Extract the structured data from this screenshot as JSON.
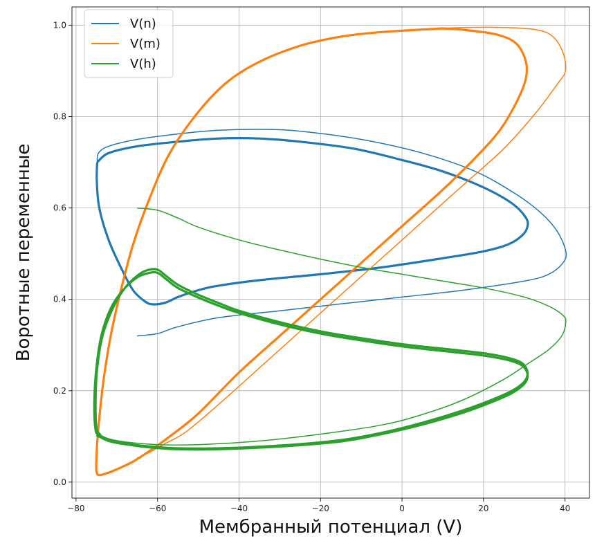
{
  "chart_data": {
    "type": "line",
    "title": "",
    "xlabel": "Мембранный потенциал (V)",
    "ylabel": "Воротные переменные",
    "xlim": [
      -81,
      46
    ],
    "ylim": [
      -0.035,
      1.04
    ],
    "xticks": [
      -80,
      -60,
      -40,
      -20,
      0,
      20,
      40
    ],
    "yticks": [
      0.0,
      0.2,
      0.4,
      0.6,
      0.8,
      1.0
    ],
    "xtick_labels": [
      "−80",
      "−60",
      "−40",
      "−20",
      "0",
      "20",
      "40"
    ],
    "ytick_labels": [
      "0.0",
      "0.2",
      "0.4",
      "0.6",
      "0.8",
      "1.0"
    ],
    "grid": true,
    "legend_position": "top-left",
    "series": [
      {
        "name": "V(n)",
        "color": "#1f77b4",
        "transient": [
          [
            -65,
            0.32
          ],
          [
            -60,
            0.325
          ],
          [
            -55,
            0.34
          ],
          [
            -45,
            0.36
          ],
          [
            -30,
            0.375
          ],
          [
            -15,
            0.39
          ],
          [
            0,
            0.405
          ],
          [
            15,
            0.42
          ],
          [
            30,
            0.44
          ],
          [
            36,
            0.455
          ],
          [
            39.5,
            0.48
          ],
          [
            40.2,
            0.505
          ],
          [
            38,
            0.55
          ],
          [
            34,
            0.59
          ],
          [
            28,
            0.63
          ],
          [
            18,
            0.68
          ],
          [
            5,
            0.72
          ],
          [
            -10,
            0.75
          ],
          [
            -25,
            0.768
          ],
          [
            -35,
            0.772
          ],
          [
            -45,
            0.77
          ],
          [
            -55,
            0.762
          ],
          [
            -65,
            0.75
          ],
          [
            -72,
            0.735
          ],
          [
            -74.5,
            0.72
          ],
          [
            -74.8,
            0.7
          ]
        ],
        "cycle": [
          [
            -74.8,
            0.7
          ],
          [
            -74.9,
            0.66
          ],
          [
            -74.3,
            0.6
          ],
          [
            -72,
            0.53
          ],
          [
            -69,
            0.47
          ],
          [
            -66,
            0.42
          ],
          [
            -63,
            0.395
          ],
          [
            -61,
            0.389
          ],
          [
            -58,
            0.393
          ],
          [
            -55,
            0.405
          ],
          [
            -50,
            0.42
          ],
          [
            -45,
            0.43
          ],
          [
            -35,
            0.442
          ],
          [
            -20,
            0.455
          ],
          [
            -5,
            0.47
          ],
          [
            10,
            0.49
          ],
          [
            20,
            0.505
          ],
          [
            26,
            0.52
          ],
          [
            29.5,
            0.54
          ],
          [
            30.8,
            0.56
          ],
          [
            30.3,
            0.58
          ],
          [
            27,
            0.61
          ],
          [
            20,
            0.645
          ],
          [
            10,
            0.68
          ],
          [
            0,
            0.705
          ],
          [
            -12,
            0.73
          ],
          [
            -25,
            0.745
          ],
          [
            -35,
            0.752
          ],
          [
            -45,
            0.752
          ],
          [
            -55,
            0.745
          ],
          [
            -65,
            0.735
          ],
          [
            -72,
            0.72
          ],
          [
            -74.8,
            0.7
          ]
        ]
      },
      {
        "name": "V(m)",
        "color": "#ff7f0e",
        "transient": [
          [
            -65,
            0.053
          ],
          [
            -62,
            0.065
          ],
          [
            -58,
            0.085
          ],
          [
            -53,
            0.11
          ],
          [
            -45,
            0.17
          ],
          [
            -35,
            0.25
          ],
          [
            -25,
            0.33
          ],
          [
            -15,
            0.41
          ],
          [
            -5,
            0.49
          ],
          [
            5,
            0.57
          ],
          [
            15,
            0.65
          ],
          [
            25,
            0.73
          ],
          [
            33,
            0.81
          ],
          [
            38,
            0.87
          ],
          [
            40.1,
            0.9
          ],
          [
            39.5,
            0.94
          ],
          [
            37,
            0.975
          ],
          [
            33,
            0.99
          ],
          [
            25,
            0.995
          ],
          [
            15,
            0.995
          ],
          [
            10,
            0.993
          ]
        ],
        "cycle": [
          [
            10,
            0.993
          ],
          [
            -5,
            0.985
          ],
          [
            -15,
            0.975
          ],
          [
            -25,
            0.955
          ],
          [
            -35,
            0.92
          ],
          [
            -43,
            0.875
          ],
          [
            -50,
            0.81
          ],
          [
            -57,
            0.72
          ],
          [
            -62,
            0.62
          ],
          [
            -66,
            0.52
          ],
          [
            -69,
            0.42
          ],
          [
            -71.5,
            0.32
          ],
          [
            -73.3,
            0.22
          ],
          [
            -74.5,
            0.12
          ],
          [
            -75,
            0.05
          ],
          [
            -74.8,
            0.018
          ],
          [
            -73,
            0.018
          ],
          [
            -70,
            0.028
          ],
          [
            -66,
            0.045
          ],
          [
            -62,
            0.068
          ],
          [
            -57,
            0.1
          ],
          [
            -50,
            0.15
          ],
          [
            -40,
            0.24
          ],
          [
            -30,
            0.32
          ],
          [
            -20,
            0.4
          ],
          [
            -10,
            0.48
          ],
          [
            0,
            0.56
          ],
          [
            10,
            0.64
          ],
          [
            18,
            0.71
          ],
          [
            24,
            0.77
          ],
          [
            28,
            0.83
          ],
          [
            30.3,
            0.88
          ],
          [
            30.4,
            0.92
          ],
          [
            28,
            0.96
          ],
          [
            23,
            0.98
          ],
          [
            15,
            0.99
          ],
          [
            10,
            0.993
          ]
        ]
      },
      {
        "name": "V(h)",
        "color": "#2ca02c",
        "transient": [
          [
            -65,
            0.6
          ],
          [
            -60,
            0.595
          ],
          [
            -55,
            0.578
          ],
          [
            -50,
            0.558
          ],
          [
            -40,
            0.53
          ],
          [
            -30,
            0.508
          ],
          [
            -20,
            0.488
          ],
          [
            -10,
            0.47
          ],
          [
            0,
            0.455
          ],
          [
            10,
            0.44
          ],
          [
            20,
            0.425
          ],
          [
            30,
            0.405
          ],
          [
            36,
            0.385
          ],
          [
            39.5,
            0.365
          ],
          [
            40.2,
            0.35
          ],
          [
            39.2,
            0.32
          ],
          [
            36,
            0.29
          ],
          [
            31,
            0.26
          ],
          [
            25,
            0.225
          ],
          [
            15,
            0.18
          ],
          [
            5,
            0.148
          ],
          [
            -5,
            0.125
          ],
          [
            -20,
            0.105
          ],
          [
            -35,
            0.09
          ],
          [
            -50,
            0.082
          ],
          [
            -60,
            0.082
          ],
          [
            -68,
            0.088
          ],
          [
            -72,
            0.095
          ],
          [
            -74,
            0.103
          ]
        ],
        "cycle": [
          [
            -74,
            0.103
          ],
          [
            -75,
            0.12
          ],
          [
            -75.2,
            0.18
          ],
          [
            -74.8,
            0.25
          ],
          [
            -73.5,
            0.32
          ],
          [
            -71,
            0.38
          ],
          [
            -68,
            0.425
          ],
          [
            -64.5,
            0.455
          ],
          [
            -62,
            0.465
          ],
          [
            -60,
            0.465
          ],
          [
            -58,
            0.452
          ],
          [
            -55,
            0.432
          ],
          [
            -50,
            0.41
          ],
          [
            -45,
            0.392
          ],
          [
            -40,
            0.375
          ],
          [
            -30,
            0.35
          ],
          [
            -20,
            0.33
          ],
          [
            -10,
            0.315
          ],
          [
            0,
            0.302
          ],
          [
            10,
            0.292
          ],
          [
            20,
            0.282
          ],
          [
            26,
            0.272
          ],
          [
            29.5,
            0.26
          ],
          [
            30.8,
            0.24
          ],
          [
            30,
            0.22
          ],
          [
            27,
            0.2
          ],
          [
            22,
            0.18
          ],
          [
            15,
            0.157
          ],
          [
            5,
            0.13
          ],
          [
            -5,
            0.108
          ],
          [
            -15,
            0.092
          ],
          [
            -30,
            0.08
          ],
          [
            -45,
            0.074
          ],
          [
            -55,
            0.074
          ],
          [
            -62,
            0.078
          ],
          [
            -68,
            0.085
          ],
          [
            -72,
            0.093
          ],
          [
            -74.5,
            0.103
          ],
          [
            -75.3,
            0.12
          ],
          [
            -75.5,
            0.18
          ],
          [
            -75,
            0.25
          ],
          [
            -73.8,
            0.32
          ],
          [
            -71.5,
            0.38
          ],
          [
            -68.5,
            0.42
          ],
          [
            -65,
            0.448
          ],
          [
            -62,
            0.458
          ],
          [
            -60,
            0.458
          ],
          [
            -58,
            0.445
          ],
          [
            -55,
            0.425
          ],
          [
            -50,
            0.404
          ],
          [
            -45,
            0.386
          ],
          [
            -40,
            0.37
          ],
          [
            -30,
            0.345
          ],
          [
            -20,
            0.325
          ],
          [
            -10,
            0.31
          ],
          [
            0,
            0.297
          ],
          [
            10,
            0.287
          ],
          [
            20,
            0.277
          ],
          [
            26,
            0.267
          ],
          [
            29.5,
            0.255
          ],
          [
            30.8,
            0.235
          ],
          [
            30,
            0.215
          ],
          [
            27,
            0.195
          ],
          [
            22,
            0.175
          ],
          [
            15,
            0.152
          ],
          [
            5,
            0.126
          ],
          [
            -5,
            0.105
          ],
          [
            -15,
            0.089
          ],
          [
            -30,
            0.078
          ],
          [
            -45,
            0.072
          ],
          [
            -55,
            0.072
          ],
          [
            -62,
            0.076
          ],
          [
            -68,
            0.083
          ],
          [
            -72,
            0.09
          ],
          [
            -75,
            0.103
          ]
        ]
      }
    ]
  }
}
